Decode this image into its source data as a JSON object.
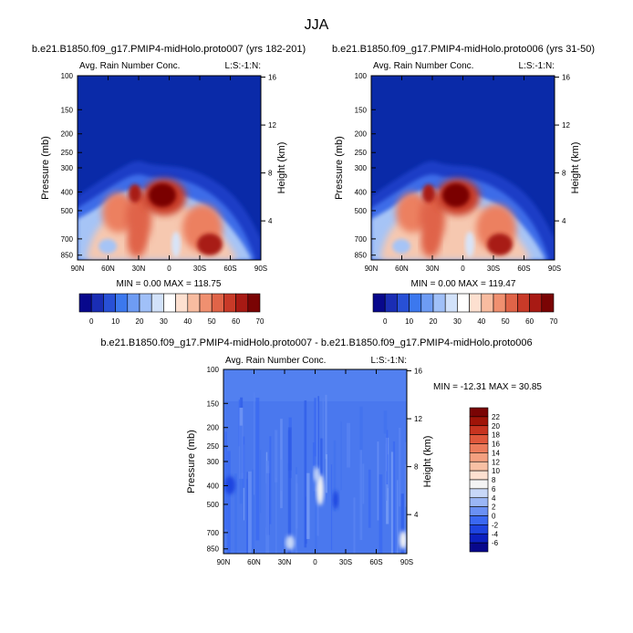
{
  "page_title": "JJA",
  "chart_data": [
    {
      "type": "heatmap",
      "title": "b.e21.B1850.f09_g17.PMIP4-midHolo.proto007 (yrs 182-201)",
      "subtitle_left": "Avg. Rain Number Conc.",
      "subtitle_right": "L:S:-1:N:",
      "ylabel": "Pressure (mb)",
      "ylabel_right": "Height (km)",
      "x_ticks": [
        "90N",
        "60N",
        "30N",
        "0",
        "30S",
        "60S",
        "90S"
      ],
      "x_values": [
        90,
        60,
        30,
        0,
        -30,
        -60,
        -90
      ],
      "p_ticks": [
        "100",
        "150",
        "200",
        "250",
        "300",
        "400",
        "500",
        "700",
        "850"
      ],
      "p_values": [
        100,
        150,
        200,
        250,
        300,
        400,
        500,
        700,
        850
      ],
      "p_range": [
        100,
        900
      ],
      "height_ticks": [
        "16",
        "12",
        "8",
        "4"
      ],
      "height_values": [
        16,
        12,
        8,
        4
      ],
      "stats": "MIN =   0.00  MAX = 118.75",
      "levels": [
        0,
        10,
        20,
        30,
        40,
        50,
        60,
        70
      ],
      "colorbar_labels": [
        "0",
        "10",
        "20",
        "30",
        "40",
        "50",
        "60",
        "70"
      ],
      "colors": [
        "#08088c",
        "#1a2db4",
        "#2850d6",
        "#3c78ee",
        "#6e9cf4",
        "#a0c0f8",
        "#d2e2fa",
        "#ffffff",
        "#fde0d0",
        "#f8bca0",
        "#f09070",
        "#e06448",
        "#c83a28",
        "#a81a14",
        "#7a0404"
      ],
      "max_value": 118.75
    },
    {
      "type": "heatmap",
      "title": "b.e21.B1850.f09_g17.PMIP4-midHolo.proto006 (yrs 31-50)",
      "subtitle_left": "Avg. Rain Number Conc.",
      "subtitle_right": "L:S:-1:N:",
      "ylabel": "Pressure (mb)",
      "ylabel_right": "Height (km)",
      "x_ticks": [
        "90N",
        "60N",
        "30N",
        "0",
        "30S",
        "60S",
        "90S"
      ],
      "x_values": [
        90,
        60,
        30,
        0,
        -30,
        -60,
        -90
      ],
      "p_ticks": [
        "100",
        "150",
        "200",
        "250",
        "300",
        "400",
        "500",
        "700",
        "850"
      ],
      "p_values": [
        100,
        150,
        200,
        250,
        300,
        400,
        500,
        700,
        850
      ],
      "p_range": [
        100,
        900
      ],
      "height_ticks": [
        "16",
        "12",
        "8",
        "4"
      ],
      "height_values": [
        16,
        12,
        8,
        4
      ],
      "stats": "MIN =   0.00  MAX = 119.47",
      "levels": [
        0,
        10,
        20,
        30,
        40,
        50,
        60,
        70
      ],
      "colorbar_labels": [
        "0",
        "10",
        "20",
        "30",
        "40",
        "50",
        "60",
        "70"
      ],
      "colors": [
        "#08088c",
        "#1a2db4",
        "#2850d6",
        "#3c78ee",
        "#6e9cf4",
        "#a0c0f8",
        "#d2e2fa",
        "#ffffff",
        "#fde0d0",
        "#f8bca0",
        "#f09070",
        "#e06448",
        "#c83a28",
        "#a81a14",
        "#7a0404"
      ],
      "max_value": 119.47
    },
    {
      "type": "heatmap",
      "title": "b.e21.B1850.f09_g17.PMIP4-midHolo.proto007 - b.e21.B1850.f09_g17.PMIP4-midHolo.proto006",
      "subtitle_left": "Avg. Rain Number Conc.",
      "subtitle_right": "L:S:-1:N:",
      "ylabel": "Pressure (mb)",
      "ylabel_right": "Height (km)",
      "x_ticks": [
        "90N",
        "60N",
        "30N",
        "0",
        "30S",
        "60S",
        "90S"
      ],
      "x_values": [
        90,
        60,
        30,
        0,
        -30,
        -60,
        -90
      ],
      "p_ticks": [
        "100",
        "150",
        "200",
        "250",
        "300",
        "400",
        "500",
        "700",
        "850"
      ],
      "p_values": [
        100,
        150,
        200,
        250,
        300,
        400,
        500,
        700,
        850
      ],
      "p_range": [
        100,
        900
      ],
      "height_ticks": [
        "16",
        "12",
        "8",
        "4"
      ],
      "height_values": [
        16,
        12,
        8,
        4
      ],
      "stats": "MIN = -12.31  MAX =  30.85",
      "levels": [
        -6,
        -4,
        -2,
        0,
        2,
        4,
        6,
        8,
        10,
        12,
        14,
        16,
        18,
        20,
        22
      ],
      "colorbar_labels": [
        "22",
        "20",
        "18",
        "16",
        "14",
        "12",
        "10",
        "8",
        "6",
        "4",
        "2",
        "0",
        "-2",
        "-4",
        "-6"
      ],
      "colors": [
        "#08088c",
        "#0c20c0",
        "#1e44e0",
        "#3a68f2",
        "#6a90f4",
        "#9ab6f6",
        "#c8d8f8",
        "#f4f4f4",
        "#fde0d0",
        "#f8c0a4",
        "#f4a080",
        "#ec7c5c",
        "#e0583c",
        "#c83420",
        "#a01408",
        "#7a0404"
      ],
      "background_value": -1
    }
  ]
}
